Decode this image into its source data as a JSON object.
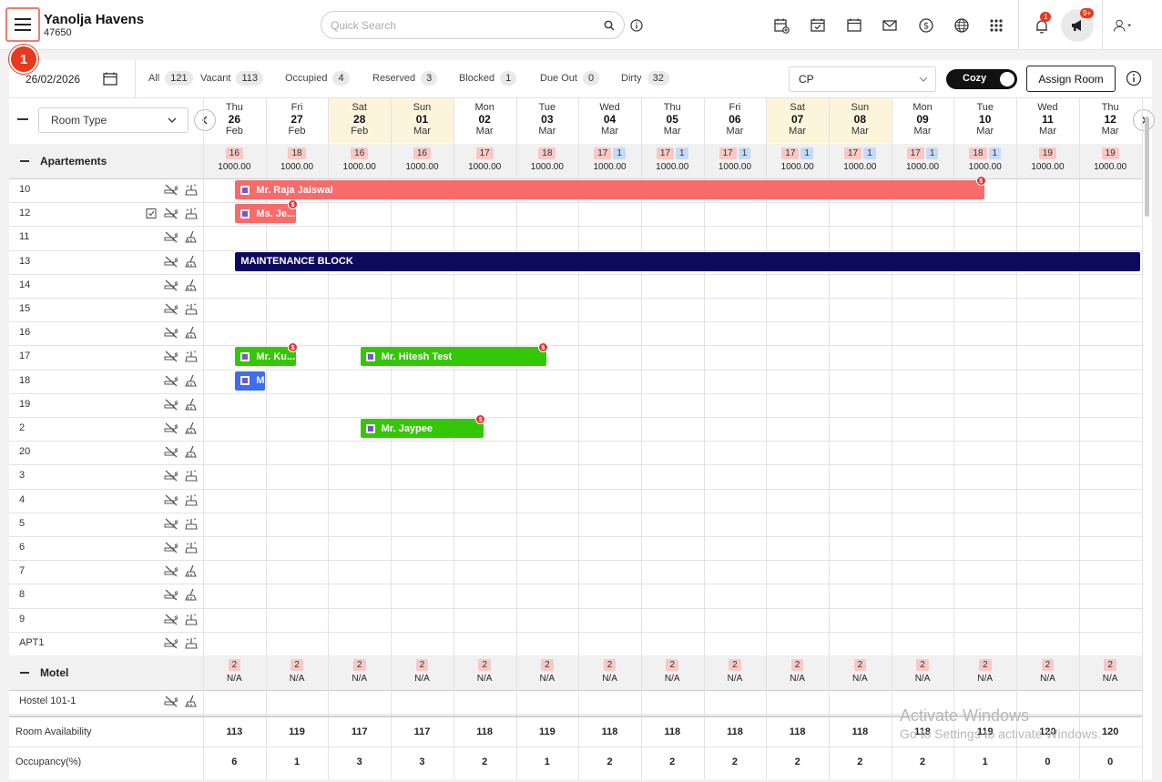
{
  "header": {
    "hotel_name": "Yanolja Havens",
    "hotel_id": "47650",
    "search_placeholder": "Quick Search",
    "notification_count": "1",
    "announcement_count": "9+",
    "step_marker": "1"
  },
  "toolbar": {
    "date": "26/02/2026",
    "filters": [
      {
        "label": "All",
        "count": "121"
      },
      {
        "label": "Vacant",
        "count": "113"
      },
      {
        "label": "Occupied",
        "count": "4"
      },
      {
        "label": "Reserved",
        "count": "3"
      },
      {
        "label": "Blocked",
        "count": "1"
      },
      {
        "label": "Due Out",
        "count": "0"
      },
      {
        "label": "Dirty",
        "count": "32"
      }
    ],
    "rate_plan": "CP",
    "view_toggle": "Cozy",
    "assign_label": "Assign Room"
  },
  "grid": {
    "room_type_select": "Room Type",
    "days": [
      {
        "dow": "Thu",
        "day": "26",
        "mon": "Feb",
        "weekend": false
      },
      {
        "dow": "Fri",
        "day": "27",
        "mon": "Feb",
        "weekend": false
      },
      {
        "dow": "Sat",
        "day": "28",
        "mon": "Feb",
        "weekend": true
      },
      {
        "dow": "Sun",
        "day": "01",
        "mon": "Mar",
        "weekend": true
      },
      {
        "dow": "Mon",
        "day": "02",
        "mon": "Mar",
        "weekend": false
      },
      {
        "dow": "Tue",
        "day": "03",
        "mon": "Mar",
        "weekend": false
      },
      {
        "dow": "Wed",
        "day": "04",
        "mon": "Mar",
        "weekend": false
      },
      {
        "dow": "Thu",
        "day": "05",
        "mon": "Mar",
        "weekend": false
      },
      {
        "dow": "Fri",
        "day": "06",
        "mon": "Mar",
        "weekend": false
      },
      {
        "dow": "Sat",
        "day": "07",
        "mon": "Mar",
        "weekend": true
      },
      {
        "dow": "Sun",
        "day": "08",
        "mon": "Mar",
        "weekend": true
      },
      {
        "dow": "Mon",
        "day": "09",
        "mon": "Mar",
        "weekend": false
      },
      {
        "dow": "Tue",
        "day": "10",
        "mon": "Mar",
        "weekend": false
      },
      {
        "dow": "Wed",
        "day": "11",
        "mon": "Mar",
        "weekend": false
      },
      {
        "dow": "Thu",
        "day": "12",
        "mon": "Mar",
        "weekend": false
      }
    ],
    "groups": [
      {
        "name": "Apartements",
        "availability": [
          {
            "a": "16",
            "b": "",
            "rate": "1000.00"
          },
          {
            "a": "18",
            "b": "",
            "rate": "1000.00"
          },
          {
            "a": "16",
            "b": "",
            "rate": "1000.00"
          },
          {
            "a": "16",
            "b": "",
            "rate": "1000.00"
          },
          {
            "a": "17",
            "b": "",
            "rate": "1000.00"
          },
          {
            "a": "18",
            "b": "",
            "rate": "1000.00"
          },
          {
            "a": "17",
            "b": "1",
            "rate": "1000.00"
          },
          {
            "a": "17",
            "b": "1",
            "rate": "1000.00"
          },
          {
            "a": "17",
            "b": "1",
            "rate": "1000.00"
          },
          {
            "a": "17",
            "b": "1",
            "rate": "1000.00"
          },
          {
            "a": "17",
            "b": "1",
            "rate": "1000.00"
          },
          {
            "a": "17",
            "b": "1",
            "rate": "1000.00"
          },
          {
            "a": "18",
            "b": "1",
            "rate": "1000.00"
          },
          {
            "a": "19",
            "b": "",
            "rate": "1000.00"
          },
          {
            "a": "19",
            "b": "",
            "rate": "1000.00"
          }
        ],
        "rooms": [
          {
            "name": "10",
            "dirty": false,
            "checked": false
          },
          {
            "name": "12",
            "dirty": false,
            "checked": true
          },
          {
            "name": "11",
            "dirty": true,
            "checked": false
          },
          {
            "name": "13",
            "dirty": true,
            "checked": false
          },
          {
            "name": "14",
            "dirty": true,
            "checked": false
          },
          {
            "name": "15",
            "dirty": false,
            "checked": false
          },
          {
            "name": "16",
            "dirty": true,
            "checked": false
          },
          {
            "name": "17",
            "dirty": false,
            "checked": false
          },
          {
            "name": "18",
            "dirty": true,
            "checked": false
          },
          {
            "name": "19",
            "dirty": true,
            "checked": false
          },
          {
            "name": "2",
            "dirty": true,
            "checked": false
          },
          {
            "name": "20",
            "dirty": true,
            "checked": false
          },
          {
            "name": "3",
            "dirty": false,
            "checked": false
          },
          {
            "name": "4",
            "dirty": false,
            "checked": false
          },
          {
            "name": "5",
            "dirty": false,
            "checked": false
          },
          {
            "name": "6",
            "dirty": false,
            "checked": false
          },
          {
            "name": "7",
            "dirty": true,
            "checked": false
          },
          {
            "name": "8",
            "dirty": true,
            "checked": false
          },
          {
            "name": "9",
            "dirty": false,
            "checked": false
          },
          {
            "name": "APT1",
            "dirty": false,
            "checked": false
          }
        ]
      },
      {
        "name": "Motel",
        "availability": [
          {
            "a": "2",
            "b": "",
            "rate": "N/A"
          },
          {
            "a": "2",
            "b": "",
            "rate": "N/A"
          },
          {
            "a": "2",
            "b": "",
            "rate": "N/A"
          },
          {
            "a": "2",
            "b": "",
            "rate": "N/A"
          },
          {
            "a": "2",
            "b": "",
            "rate": "N/A"
          },
          {
            "a": "2",
            "b": "",
            "rate": "N/A"
          },
          {
            "a": "2",
            "b": "",
            "rate": "N/A"
          },
          {
            "a": "2",
            "b": "",
            "rate": "N/A"
          },
          {
            "a": "2",
            "b": "",
            "rate": "N/A"
          },
          {
            "a": "2",
            "b": "",
            "rate": "N/A"
          },
          {
            "a": "2",
            "b": "",
            "rate": "N/A"
          },
          {
            "a": "2",
            "b": "",
            "rate": "N/A"
          },
          {
            "a": "2",
            "b": "",
            "rate": "N/A"
          },
          {
            "a": "2",
            "b": "",
            "rate": "N/A"
          },
          {
            "a": "2",
            "b": "",
            "rate": "N/A"
          }
        ],
        "rooms": [
          {
            "name": "Hostel 101-1",
            "dirty": true,
            "checked": false
          }
        ]
      }
    ],
    "bookings": [
      {
        "room": "10",
        "label": "Mr. Raja Jaiswal",
        "start": 0.5,
        "end": 12.5,
        "color": "#f76b6b",
        "pay": true
      },
      {
        "room": "12",
        "label": "Ms. Je...",
        "start": 0.5,
        "end": 1.5,
        "color": "#f76b6b",
        "pay": true
      },
      {
        "room": "13",
        "label": "MAINTENANCE BLOCK",
        "start": 0.5,
        "end": 15,
        "color": "#0d0a5e",
        "pay": false
      },
      {
        "room": "17",
        "label": "Mr. Ku...",
        "start": 0.5,
        "end": 1.5,
        "color": "#34c708",
        "pay": true
      },
      {
        "room": "17",
        "label": "Mr. Hitesh Test",
        "start": 2.5,
        "end": 5.5,
        "color": "#34c708",
        "pay": true
      },
      {
        "room": "18",
        "label": "M",
        "start": 0.5,
        "end": 1,
        "color": "#3d6df2",
        "pay": false
      },
      {
        "room": "2",
        "label": "Mr. Jaypee",
        "start": 2.5,
        "end": 4.5,
        "color": "#34c708",
        "pay": true
      }
    ],
    "footer": {
      "availability_label": "Room Availability",
      "availability": [
        "113",
        "119",
        "117",
        "117",
        "118",
        "119",
        "118",
        "118",
        "118",
        "118",
        "118",
        "118",
        "119",
        "120",
        "120"
      ],
      "occupancy_label": "Occupancy(%)",
      "occupancy": [
        "6",
        "1",
        "3",
        "3",
        "2",
        "1",
        "2",
        "2",
        "2",
        "2",
        "2",
        "2",
        "1",
        "0",
        "0"
      ]
    }
  },
  "watermark": {
    "line1": "Activate Windows",
    "line2": "Go to Settings to activate Windows."
  }
}
